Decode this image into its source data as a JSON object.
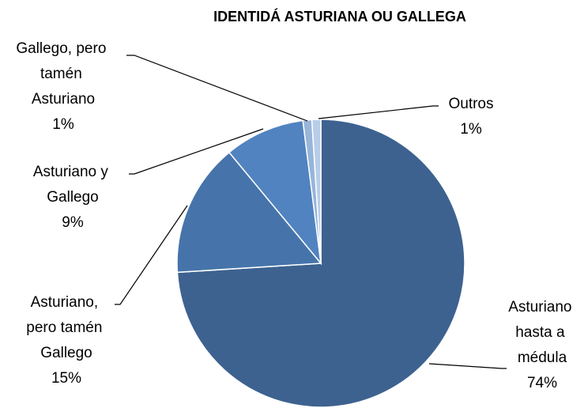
{
  "chart_data": {
    "type": "pie",
    "title": "IDENTIDÁ ASTURIANA OU GALLEGA",
    "categories": [
      "Asturiano hasta a médula",
      "Asturiano, pero tamén Gallego",
      "Asturiano y Gallego",
      "Gallego, pero tamén Asturiano",
      "Outros"
    ],
    "values": [
      74,
      15,
      9,
      1,
      1
    ],
    "value_labels": [
      "74%",
      "15%",
      "9%",
      "1%",
      "1%"
    ],
    "colors": [
      "#3d6290",
      "#4674aa",
      "#5183c0",
      "#98b5da",
      "#b8cde8"
    ]
  }
}
